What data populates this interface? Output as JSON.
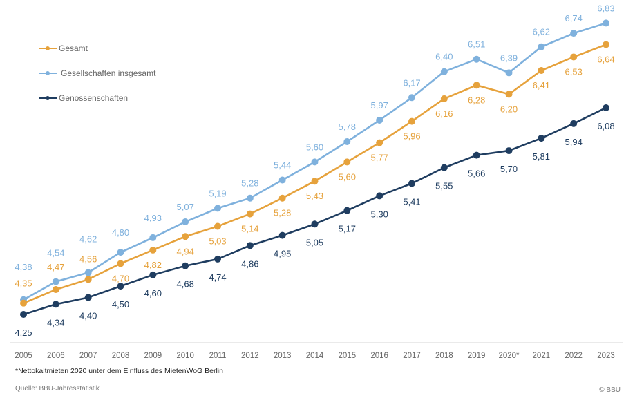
{
  "chart_data": {
    "type": "line",
    "title": "",
    "xlabel": "",
    "ylabel": "",
    "x": [
      "2005",
      "2006",
      "2007",
      "2008",
      "2009",
      "2010",
      "2011",
      "2012",
      "2013",
      "2014",
      "2015",
      "2016",
      "2017",
      "2018",
      "2019",
      "2020*",
      "2021",
      "2022",
      "2023"
    ],
    "ylim": [
      4.25,
      6.83
    ],
    "grid": false,
    "legend_position": "top-left",
    "series": [
      {
        "name": "Gesamt",
        "color": "#e6a23c",
        "values": [
          4.35,
          4.47,
          4.56,
          4.7,
          4.82,
          4.94,
          5.03,
          5.14,
          5.28,
          5.43,
          5.6,
          5.77,
          5.96,
          6.16,
          6.28,
          6.2,
          6.41,
          6.53,
          6.64
        ]
      },
      {
        "name": "Gesellschaften insgesamt",
        "color": "#7fb1dd",
        "values": [
          4.38,
          4.54,
          4.62,
          4.8,
          4.93,
          5.07,
          5.19,
          5.28,
          5.44,
          5.6,
          5.78,
          5.97,
          6.17,
          6.4,
          6.51,
          6.39,
          6.62,
          6.74,
          6.83
        ]
      },
      {
        "name": "Genossenschaften",
        "color": "#1f3d60",
        "values": [
          4.25,
          4.34,
          4.4,
          4.5,
          4.6,
          4.68,
          4.74,
          4.86,
          4.95,
          5.05,
          5.17,
          5.3,
          5.41,
          5.55,
          5.66,
          5.7,
          5.81,
          5.94,
          6.08
        ]
      }
    ]
  },
  "footnote": "*Nettokaltmieten 2020 unter dem Einfluss des MietenWoG Berlin",
  "source": "Quelle: BBU-Jahresstatistik",
  "copyright": "© BBU"
}
